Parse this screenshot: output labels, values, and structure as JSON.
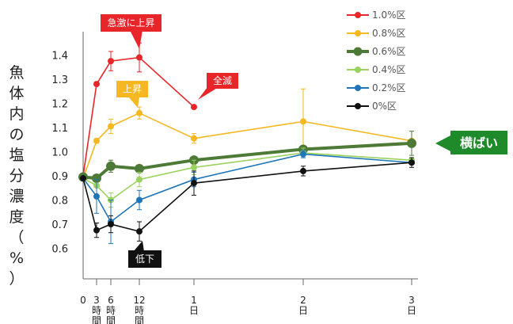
{
  "chart_data": {
    "type": "line",
    "ylabel": "魚体内の塩分濃度（%）",
    "ylim": [
      0.5,
      1.5
    ],
    "y_ticks": [
      "0.6",
      "0.7",
      "0.8",
      "0.9",
      "1.0",
      "1.1",
      "1.2",
      "1.3",
      "1.4"
    ],
    "x_ticks": [
      {
        "x": 0,
        "lines": [
          "0"
        ]
      },
      {
        "x": 3,
        "lines": [
          "3",
          "時",
          "間"
        ]
      },
      {
        "x": 6,
        "lines": [
          "6",
          "時",
          "間"
        ]
      },
      {
        "x": 12,
        "lines": [
          "12",
          "時",
          "間"
        ]
      },
      {
        "x": 24,
        "lines": [
          "1",
          "日"
        ]
      },
      {
        "x": 48,
        "lines": [
          "2",
          "日"
        ]
      },
      {
        "x": 72,
        "lines": [
          "3",
          "日"
        ]
      }
    ],
    "grid": false,
    "legend_position": "top-right",
    "series": [
      {
        "name": "1.0%区",
        "color": "#e8262a",
        "width": 1.6,
        "x": [
          0,
          3,
          6,
          12,
          24
        ],
        "y": [
          0.9,
          1.28,
          1.375,
          1.39,
          1.185
        ],
        "err": [
          0,
          0,
          0.04,
          0.06,
          0
        ]
      },
      {
        "name": "0.8%区",
        "color": "#f5b722",
        "width": 1.6,
        "x": [
          0,
          3,
          6,
          12,
          24,
          48,
          72
        ],
        "y": [
          0.89,
          1.045,
          1.105,
          1.16,
          1.055,
          1.125,
          1.045
        ],
        "err": [
          0,
          0,
          0.03,
          0.025,
          0.02,
          0.135,
          0
        ]
      },
      {
        "name": "0.6%区",
        "color": "#4e7a38",
        "width": 4,
        "x": [
          0,
          3,
          6,
          12,
          24,
          48,
          72
        ],
        "y": [
          0.895,
          0.89,
          0.94,
          0.93,
          0.965,
          1.01,
          1.035
        ],
        "err": [
          0,
          0,
          0.025,
          0,
          0.015,
          0.015,
          0.05
        ]
      },
      {
        "name": "0.4%区",
        "color": "#9bd25d",
        "width": 1.6,
        "x": [
          0,
          3,
          6,
          12,
          24,
          48,
          72
        ],
        "y": [
          0.89,
          0.86,
          0.8,
          0.885,
          0.935,
          0.995,
          0.965
        ],
        "err": [
          0,
          0,
          0.03,
          0.03,
          0.03,
          0.02,
          0
        ]
      },
      {
        "name": "0.2%区",
        "color": "#1f75b9",
        "width": 1.6,
        "x": [
          0,
          3,
          6,
          12,
          24,
          48,
          72
        ],
        "y": [
          0.89,
          0.815,
          0.71,
          0.8,
          0.885,
          0.99,
          0.955
        ],
        "err": [
          0,
          0.07,
          0.09,
          0.04,
          0.03,
          0.015,
          0
        ]
      },
      {
        "name": "0%区",
        "color": "#111111",
        "width": 1.6,
        "x": [
          0,
          3,
          6,
          12,
          24,
          48,
          72
        ],
        "y": [
          0.89,
          0.675,
          0.7,
          0.67,
          0.87,
          0.92,
          0.955
        ],
        "err": [
          0,
          0.03,
          0.035,
          0.04,
          0.05,
          0.02,
          0.02
        ]
      }
    ],
    "annotations": [
      {
        "text": "急激に上昇",
        "bg": "#e8262a",
        "color": "#ffffff"
      },
      {
        "text": "全滅",
        "bg": "#e8262a",
        "color": "#ffffff"
      },
      {
        "text": "上昇",
        "bg": "#f5b722",
        "color": "#ffffff"
      },
      {
        "text": "横ばい",
        "bg": "#1e8a2a",
        "color": "#ffffff"
      },
      {
        "text": "低下",
        "bg": "#111111",
        "color": "#ffffff"
      }
    ]
  }
}
